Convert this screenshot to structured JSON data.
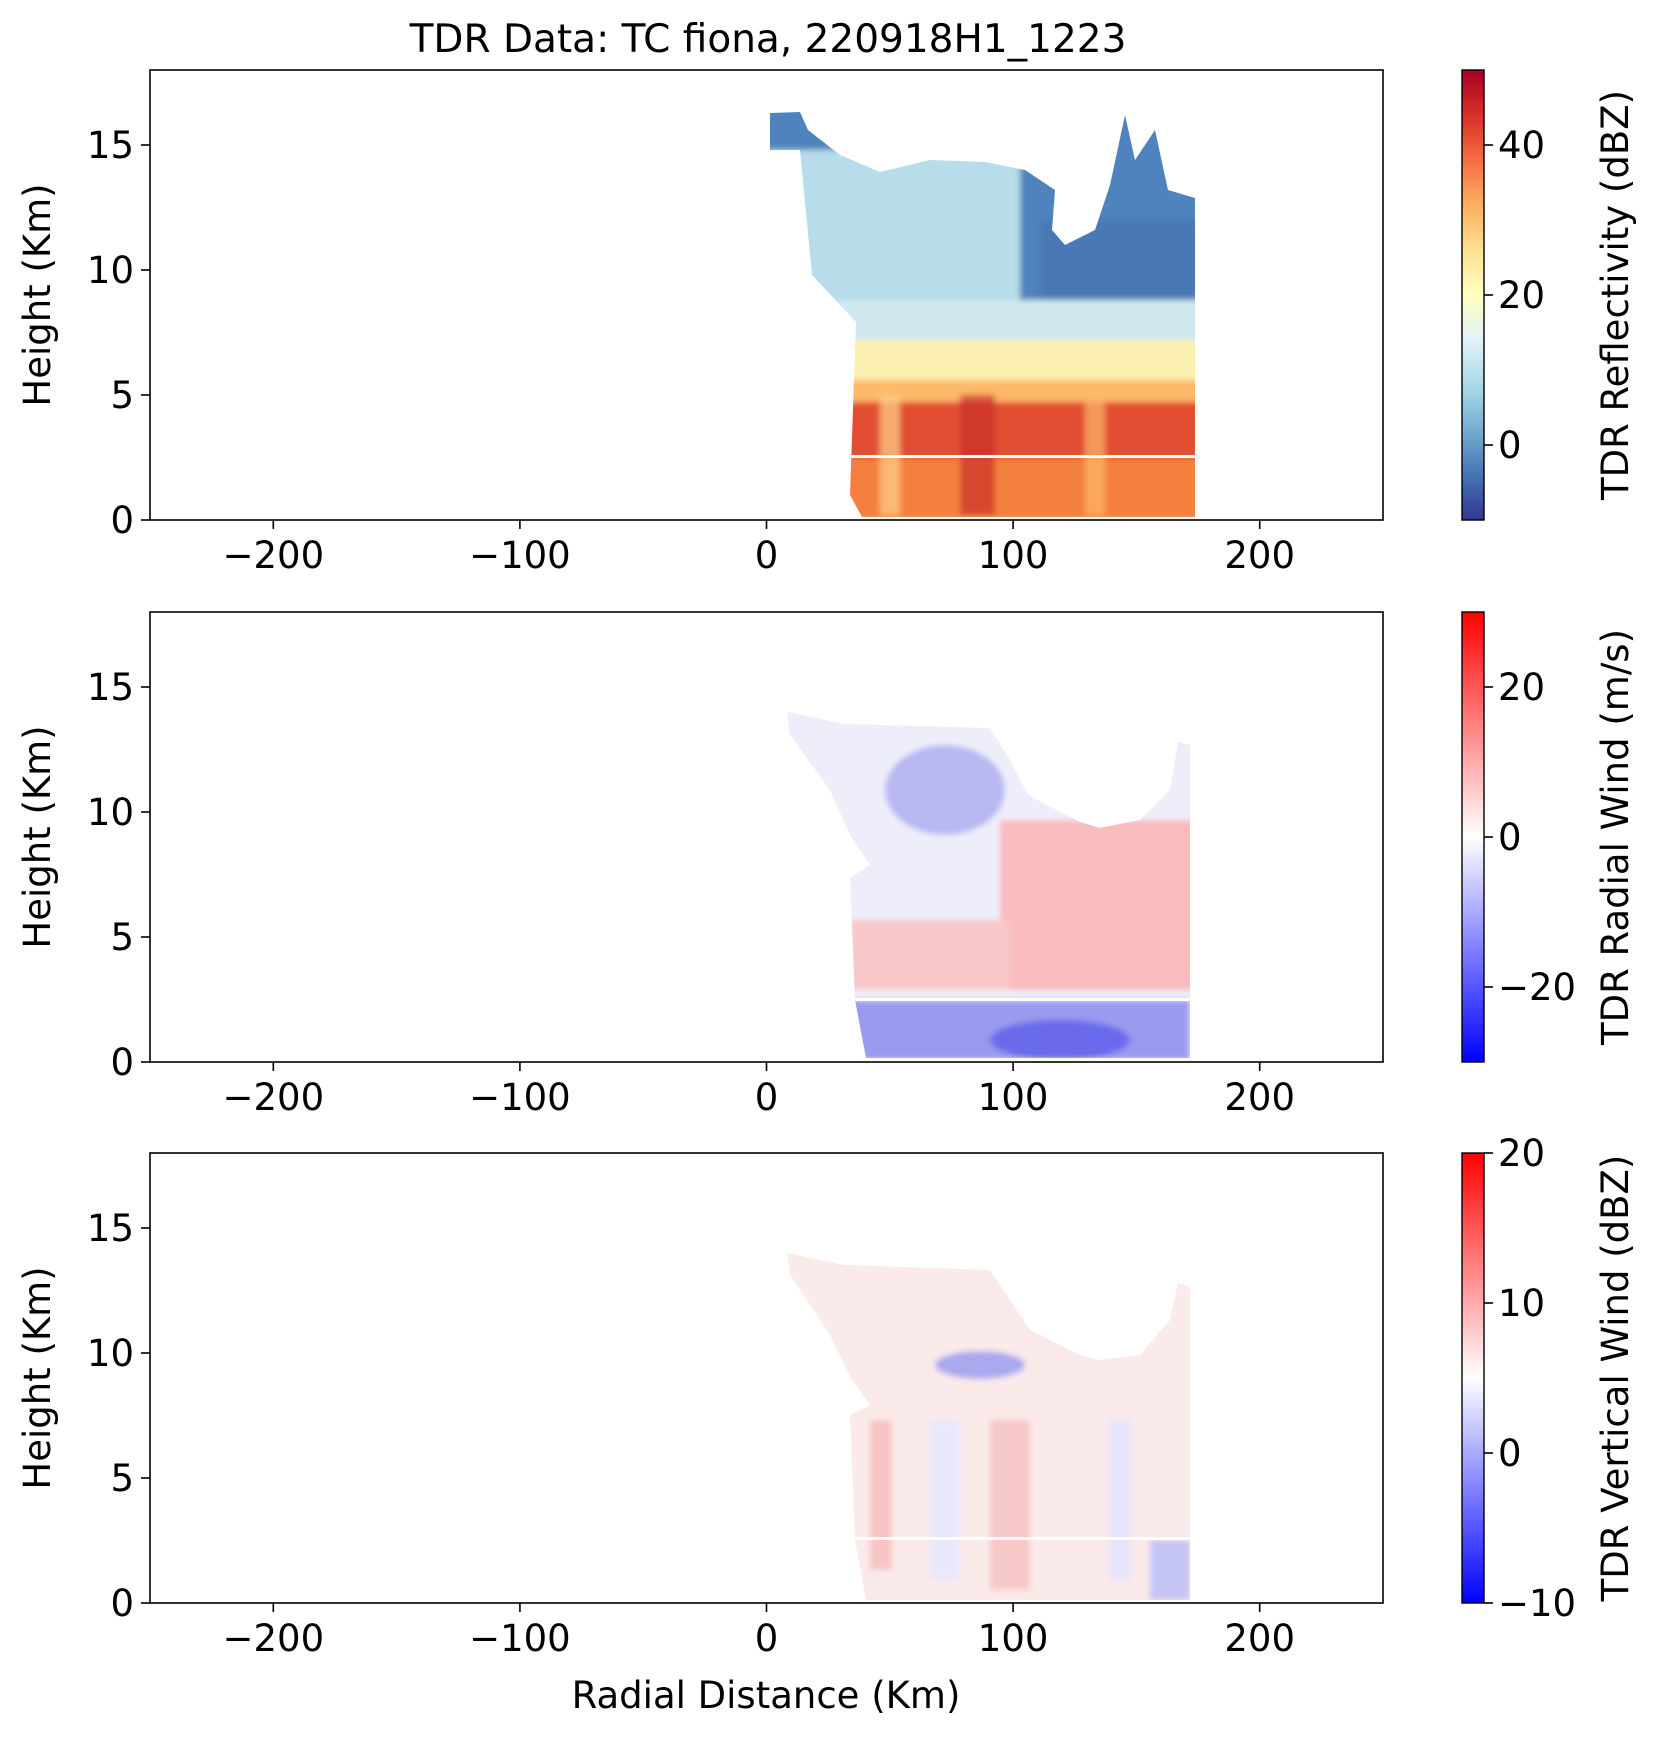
{
  "figure": {
    "title": "TDR Data: TC fiona, 220918H1_1223"
  },
  "chart_data": [
    {
      "type": "heatmap",
      "title": "TDR Data: TC fiona, 220918H1_1223",
      "xlabel": "",
      "ylabel": "Height (Km)",
      "xlim": [
        -250,
        250
      ],
      "ylim": [
        0,
        18
      ],
      "xticks": [
        -200,
        -100,
        0,
        100,
        200
      ],
      "xtick_labels": [
        "−200",
        "−100",
        "0",
        "100",
        "200"
      ],
      "yticks": [
        0,
        5,
        10,
        15
      ],
      "ytick_labels": [
        "0",
        "5",
        "10",
        "15"
      ],
      "colorbar": {
        "label": "TDR Reflectivity (dBZ)",
        "range": [
          -10,
          50
        ],
        "ticks": [
          0,
          20,
          40
        ],
        "tick_labels": [
          "0",
          "20",
          "40"
        ],
        "colormap": "RdYlBu_r",
        "colors": [
          "#313695",
          "#4575b4",
          "#74add1",
          "#abd9e9",
          "#e0f3f8",
          "#ffffbf",
          "#fee090",
          "#fdae61",
          "#f46d43",
          "#d73027",
          "#a50026"
        ]
      },
      "field": "reflectivity",
      "data_extent": {
        "x": [
          0,
          172
        ],
        "y": [
          0.3,
          16.3
        ]
      }
    },
    {
      "type": "heatmap",
      "xlabel": "",
      "ylabel": "Height (Km)",
      "xlim": [
        -250,
        250
      ],
      "ylim": [
        0,
        18
      ],
      "xticks": [
        -200,
        -100,
        0,
        100,
        200
      ],
      "xtick_labels": [
        "−200",
        "−100",
        "0",
        "100",
        "200"
      ],
      "yticks": [
        0,
        5,
        10,
        15
      ],
      "ytick_labels": [
        "0",
        "5",
        "10",
        "15"
      ],
      "colorbar": {
        "label": "TDR Radial Wind (m/s)",
        "range": [
          -30,
          30
        ],
        "ticks": [
          -20,
          0,
          20
        ],
        "tick_labels": [
          "−20",
          "0",
          "20"
        ],
        "colormap": "bwr",
        "colors": [
          "#0000ff",
          "#ffffff",
          "#ff0000"
        ]
      },
      "field": "radial_wind",
      "data_extent": {
        "x": [
          7,
          170
        ],
        "y": [
          0.4,
          15
        ]
      }
    },
    {
      "type": "heatmap",
      "xlabel": "Radial Distance (Km)",
      "ylabel": "Height (Km)",
      "xlim": [
        -250,
        250
      ],
      "ylim": [
        0,
        18
      ],
      "xticks": [
        -200,
        -100,
        0,
        100,
        200
      ],
      "xtick_labels": [
        "−200",
        "−100",
        "0",
        "100",
        "200"
      ],
      "yticks": [
        0,
        5,
        10,
        15
      ],
      "ytick_labels": [
        "0",
        "5",
        "10",
        "15"
      ],
      "colorbar": {
        "label": "TDR Vertical Wind (dBZ)",
        "range": [
          -10,
          20
        ],
        "ticks": [
          -10,
          0,
          10,
          20
        ],
        "tick_labels": [
          "−10",
          "0",
          "10",
          "20"
        ],
        "colormap": "bwr",
        "colors": [
          "#0000ff",
          "#ffffff",
          "#ff0000"
        ]
      },
      "field": "vertical_wind",
      "data_extent": {
        "x": [
          7,
          170
        ],
        "y": [
          0.4,
          15
        ]
      }
    }
  ]
}
